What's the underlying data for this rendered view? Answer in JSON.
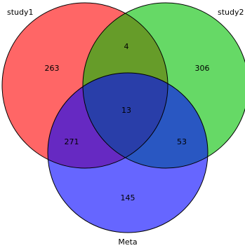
{
  "diagram": {
    "sets": [
      {
        "id": "A",
        "label": "study1",
        "color": "#ff0000"
      },
      {
        "id": "B",
        "label": "study2",
        "color": "#00c000"
      },
      {
        "id": "C",
        "label": "Meta",
        "color": "#0000ff"
      }
    ],
    "regions": {
      "A_only": "263",
      "B_only": "306",
      "C_only": "145",
      "AB_only": "4",
      "AC_only": "271",
      "BC_only": "53",
      "ABC": "13"
    }
  }
}
